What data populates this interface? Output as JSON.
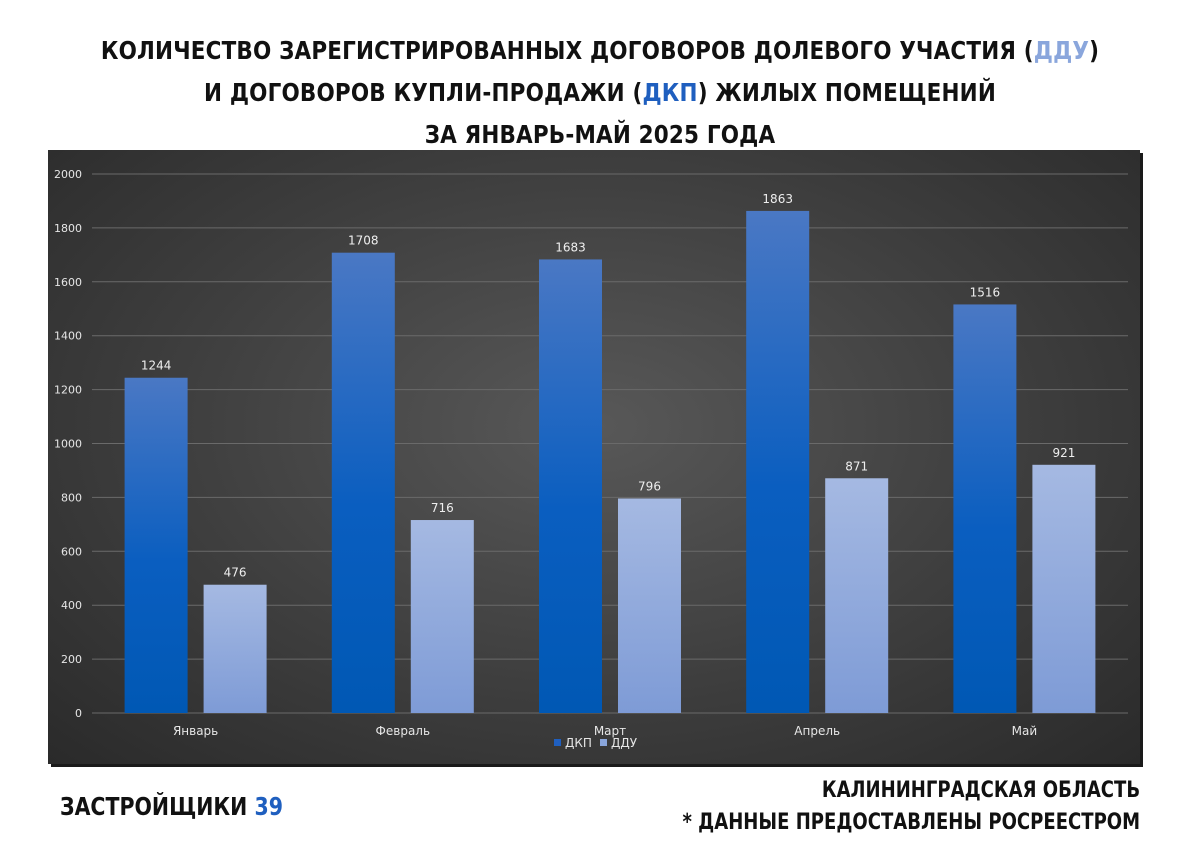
{
  "title": {
    "line1_pre": "КОЛИЧЕСТВО ЗАРЕГИСТРИРОВАННЫХ ДОГОВОРОВ ДОЛЕВОГО УЧАСТИЯ (",
    "line1_accent": "ДДУ",
    "line1_post": ")",
    "line2_pre": "И ДОГОВОРОВ КУПЛИ-ПРОДАЖИ (",
    "line2_accent": "ДКП",
    "line2_post": ") ЖИЛЫХ ПОМЕЩЕНИЙ",
    "line3": "ЗА ЯНВАРЬ-МАЙ 2025 ГОДА"
  },
  "footer": {
    "brand": "ЗАСТРОЙЩИКИ",
    "brand_number": "39",
    "region": "КАЛИНИНГРАДСКАЯ ОБЛАСТЬ",
    "source": "* ДАННЫЕ ПРЕДОСТАВЛЕНЫ РОСРЕЕСТРОМ"
  },
  "colors": {
    "dkp": "#1f5fbf",
    "ddu": "#8aa6dc",
    "accent": "#1f5fbf"
  },
  "chart_data": {
    "type": "bar",
    "categories": [
      "Январь",
      "Февраль",
      "Март",
      "Апрель",
      "Май"
    ],
    "series": [
      {
        "name": "ДКП",
        "values": [
          1244,
          1708,
          1683,
          1863,
          1516
        ]
      },
      {
        "name": "ДДУ",
        "values": [
          476,
          716,
          796,
          871,
          921
        ]
      }
    ],
    "ylim": [
      0,
      2000
    ],
    "yticks": [
      0,
      200,
      400,
      600,
      800,
      1000,
      1200,
      1400,
      1600,
      1800,
      2000
    ],
    "grid": true,
    "legend": "bottom",
    "data_labels": true
  }
}
